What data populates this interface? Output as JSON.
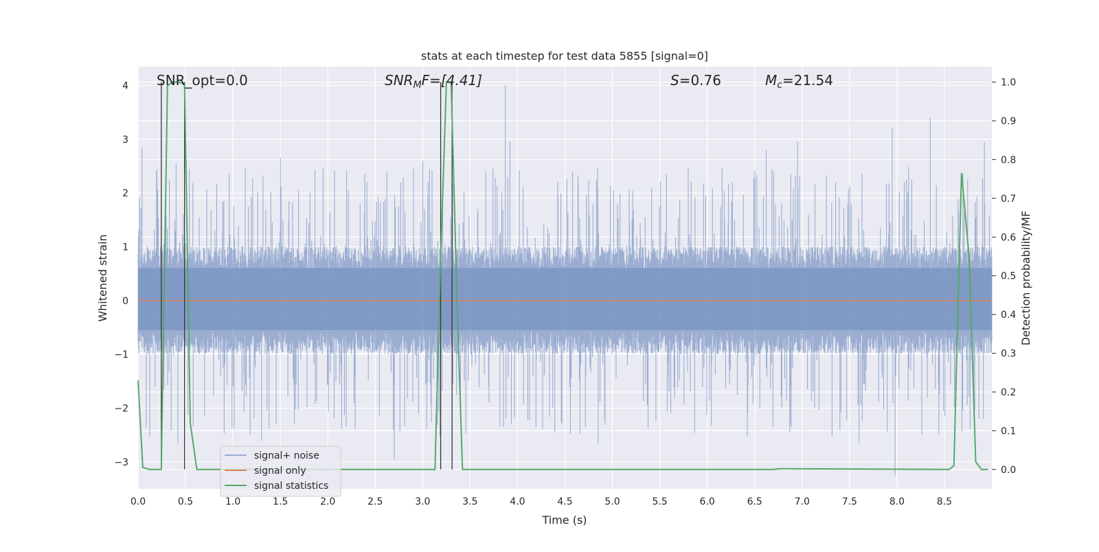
{
  "chart_data": {
    "type": "line",
    "title": "stats at each timestep for test data 5855 [signal=0]",
    "xlabel": "Time (s)",
    "ylabel_left": "Whitened strain",
    "ylabel_right": "Detection probability/MF",
    "xlim": [
      0.0,
      9.0
    ],
    "ylim_left": [
      -3.5,
      4.35
    ],
    "ylim_right": [
      -0.05,
      1.04
    ],
    "x_ticks": [
      "0.0",
      "0.5",
      "1.0",
      "1.5",
      "2.0",
      "2.5",
      "3.0",
      "3.5",
      "4.0",
      "4.5",
      "5.0",
      "5.5",
      "6.0",
      "6.5",
      "7.0",
      "7.5",
      "8.0",
      "8.5"
    ],
    "y_ticks_left": [
      "4",
      "3",
      "2",
      "1",
      "0",
      "−1",
      "−2",
      "−3"
    ],
    "y_ticks_right": [
      "1.0",
      "0.9",
      "0.8",
      "0.7",
      "0.6",
      "0.5",
      "0.4",
      "0.3",
      "0.2",
      "0.1",
      "0.0"
    ],
    "grid": true,
    "legend_position": "lower-left",
    "annotations": {
      "snr_opt": "SNR_opt=0.0",
      "snr_mf_base": "SNR",
      "snr_mf_sub": "M",
      "snr_mf_rest": "F=[4.41]",
      "s_italic": "S",
      "s_rest": "=0.76",
      "mc_base": "M",
      "mc_sub": "c",
      "mc_rest": "=21.54"
    },
    "series": [
      {
        "name": "signal+ noise",
        "axis": "left",
        "color": "#4c72b0",
        "description_envelope": {
          "typical_range": [
            -1.0,
            1.1
          ],
          "peak_max": 4.0,
          "peak_min": -3.25
        },
        "notable_peaks": [
          {
            "x": 0.04,
            "y": 2.85
          },
          {
            "x": 0.4,
            "y": 2.55
          },
          {
            "x": 1.5,
            "y": 2.65
          },
          {
            "x": 3.0,
            "y": 2.6
          },
          {
            "x": 3.87,
            "y": 4.0
          },
          {
            "x": 3.92,
            "y": 2.95
          },
          {
            "x": 6.62,
            "y": 2.8
          },
          {
            "x": 6.95,
            "y": 2.95
          },
          {
            "x": 7.95,
            "y": 3.2
          },
          {
            "x": 8.35,
            "y": 3.4
          },
          {
            "x": 8.92,
            "y": 2.95
          }
        ],
        "notable_troughs": [
          {
            "x": 0.42,
            "y": -2.65
          },
          {
            "x": 1.3,
            "y": -2.6
          },
          {
            "x": 2.7,
            "y": -2.95
          },
          {
            "x": 4.85,
            "y": -2.65
          },
          {
            "x": 7.6,
            "y": -2.65
          },
          {
            "x": 7.98,
            "y": -3.25
          }
        ]
      },
      {
        "name": "signal only",
        "axis": "left",
        "color": "#dd8452",
        "x": [
          0.0,
          9.0
        ],
        "y": [
          0.0,
          0.0
        ]
      },
      {
        "name": "signal statistics",
        "axis": "right",
        "color": "#55a868",
        "x": [
          0.0,
          0.05,
          0.12,
          0.19,
          0.245,
          0.31,
          0.36,
          0.42,
          0.49,
          0.55,
          0.62,
          3.13,
          3.19,
          3.25,
          3.3,
          3.36,
          3.42,
          6.7,
          6.75,
          8.55,
          8.6,
          8.68,
          8.76,
          8.83,
          8.89,
          8.96
        ],
        "y": [
          0.23,
          0.005,
          0.0,
          0.0,
          0.0,
          0.99,
          1.0,
          1.0,
          0.995,
          0.12,
          0.0,
          0.0,
          0.55,
          1.0,
          1.0,
          0.45,
          0.0,
          0.0,
          0.002,
          0.0,
          0.01,
          0.765,
          0.55,
          0.02,
          0.0,
          0.0
        ]
      }
    ],
    "vertical_markers": {
      "color": "#333333",
      "x": [
        0.245,
        0.49,
        3.19,
        3.31
      ],
      "y_range_right": [
        0.0,
        1.0
      ]
    },
    "colors": {
      "plot_background": "#eaeaf2",
      "grid": "#ffffff"
    }
  }
}
